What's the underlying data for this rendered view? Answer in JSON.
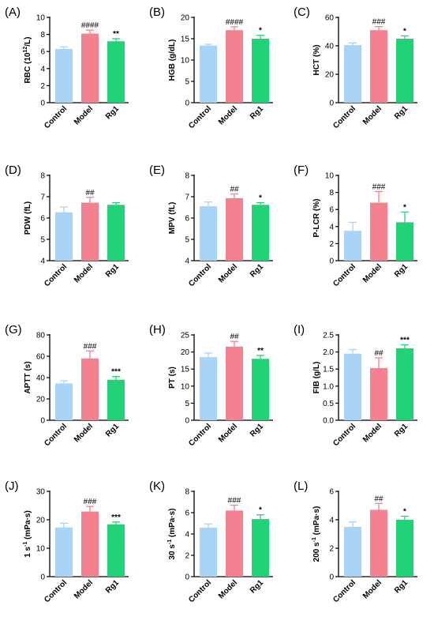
{
  "colors": {
    "Control": "#a8d4f7",
    "Model": "#f4818f",
    "Rg1": "#22d277",
    "axis": "#000000"
  },
  "chart_data": [
    {
      "type": "bar",
      "panel_label": "(A)",
      "ylabel": "RBC (10^12/L)",
      "ylim": [
        0,
        10
      ],
      "ticks": [
        0,
        2,
        4,
        6,
        8,
        10
      ],
      "categories": [
        "Control",
        "Model",
        "Rg1"
      ],
      "values": [
        6.3,
        8.1,
        7.2
      ],
      "errors": [
        0.25,
        0.4,
        0.3
      ],
      "annotations": [
        "",
        "####",
        "**"
      ]
    },
    {
      "type": "bar",
      "panel_label": "(B)",
      "ylabel": "HGB (g/dL)",
      "ylim": [
        0,
        20
      ],
      "ticks": [
        0,
        5,
        10,
        15,
        20
      ],
      "categories": [
        "Control",
        "Model",
        "Rg1"
      ],
      "values": [
        13.4,
        17.0,
        15.0
      ],
      "errors": [
        0.3,
        0.8,
        0.8
      ],
      "annotations": [
        "",
        "####",
        "*"
      ]
    },
    {
      "type": "bar",
      "panel_label": "(C)",
      "ylabel": "HCT (%)",
      "ylim": [
        0,
        60
      ],
      "ticks": [
        0,
        20,
        40,
        60
      ],
      "categories": [
        "Control",
        "Model",
        "Rg1"
      ],
      "values": [
        40.5,
        51.0,
        45.0
      ],
      "errors": [
        1.5,
        2.5,
        2.0
      ],
      "annotations": [
        "",
        "###",
        "*"
      ]
    },
    {
      "type": "bar",
      "panel_label": "(D)",
      "ylabel": "PDW (fL)",
      "ylim": [
        4,
        8
      ],
      "ticks": [
        4,
        5,
        6,
        7,
        8
      ],
      "categories": [
        "Control",
        "Model",
        "Rg1"
      ],
      "values": [
        6.27,
        6.72,
        6.62
      ],
      "errors": [
        0.25,
        0.25,
        0.1
      ],
      "annotations": [
        "",
        "##",
        ""
      ]
    },
    {
      "type": "bar",
      "panel_label": "(E)",
      "ylabel": "MPV (fL)",
      "ylim": [
        4,
        8
      ],
      "ticks": [
        4,
        5,
        6,
        7,
        8
      ],
      "categories": [
        "Control",
        "Model",
        "Rg1"
      ],
      "values": [
        6.55,
        6.93,
        6.62
      ],
      "errors": [
        0.2,
        0.2,
        0.1
      ],
      "annotations": [
        "",
        "##",
        "*"
      ]
    },
    {
      "type": "bar",
      "panel_label": "(F)",
      "ylabel": "P-LCR (%)",
      "ylim": [
        0,
        10
      ],
      "ticks": [
        0,
        2,
        4,
        6,
        8,
        10
      ],
      "categories": [
        "Control",
        "Model",
        "Rg1"
      ],
      "values": [
        3.5,
        6.8,
        4.5
      ],
      "errors": [
        1.0,
        1.3,
        1.2
      ],
      "annotations": [
        "",
        "###",
        "*"
      ]
    },
    {
      "type": "bar",
      "panel_label": "(G)",
      "ylabel": "APTT (s)",
      "ylim": [
        0,
        80
      ],
      "ticks": [
        0,
        20,
        40,
        60,
        80
      ],
      "categories": [
        "Control",
        "Model",
        "Rg1"
      ],
      "values": [
        34.5,
        58.0,
        38.0
      ],
      "errors": [
        2.5,
        7.0,
        3.0
      ],
      "annotations": [
        "",
        "###",
        "***"
      ]
    },
    {
      "type": "bar",
      "panel_label": "(H)",
      "ylabel": "PT (s)",
      "ylim": [
        0,
        25
      ],
      "ticks": [
        0,
        5,
        10,
        15,
        20,
        25
      ],
      "categories": [
        "Control",
        "Model",
        "Rg1"
      ],
      "values": [
        18.5,
        21.6,
        18.0
      ],
      "errors": [
        1.2,
        1.5,
        1.0
      ],
      "annotations": [
        "",
        "##",
        "**"
      ]
    },
    {
      "type": "bar",
      "panel_label": "(I)",
      "ylabel": "FIB (g/L)",
      "ylim": [
        0,
        2.5
      ],
      "ticks": [
        0.0,
        0.5,
        1.0,
        1.5,
        2.0,
        2.5
      ],
      "categories": [
        "Control",
        "Model",
        "Rg1"
      ],
      "values": [
        1.95,
        1.53,
        2.11
      ],
      "errors": [
        0.12,
        0.3,
        0.1
      ],
      "annotations": [
        "",
        "##",
        "***"
      ]
    },
    {
      "type": "bar",
      "panel_label": "(J)",
      "ylabel": "1 s^-1 (mPa·s)",
      "ylim": [
        0,
        30
      ],
      "ticks": [
        0,
        10,
        20,
        30
      ],
      "categories": [
        "Control",
        "Model",
        "Rg1"
      ],
      "values": [
        17.3,
        22.9,
        18.4
      ],
      "errors": [
        1.5,
        1.8,
        0.8
      ],
      "annotations": [
        "",
        "###",
        "***"
      ]
    },
    {
      "type": "bar",
      "panel_label": "(K)",
      "ylabel": "30 s^-1 (mPa·s)",
      "ylim": [
        0,
        8
      ],
      "ticks": [
        0,
        2,
        4,
        6,
        8
      ],
      "categories": [
        "Control",
        "Model",
        "Rg1"
      ],
      "values": [
        4.6,
        6.2,
        5.4
      ],
      "errors": [
        0.35,
        0.5,
        0.4
      ],
      "annotations": [
        "",
        "###",
        "*"
      ]
    },
    {
      "type": "bar",
      "panel_label": "(L)",
      "ylabel": "200 s^-1 (mPa·s)",
      "ylim": [
        0,
        6
      ],
      "ticks": [
        0,
        2,
        4,
        6
      ],
      "categories": [
        "Control",
        "Model",
        "Rg1"
      ],
      "values": [
        3.5,
        4.7,
        4.0
      ],
      "errors": [
        0.35,
        0.45,
        0.25
      ],
      "annotations": [
        "",
        "##",
        "*"
      ]
    }
  ]
}
